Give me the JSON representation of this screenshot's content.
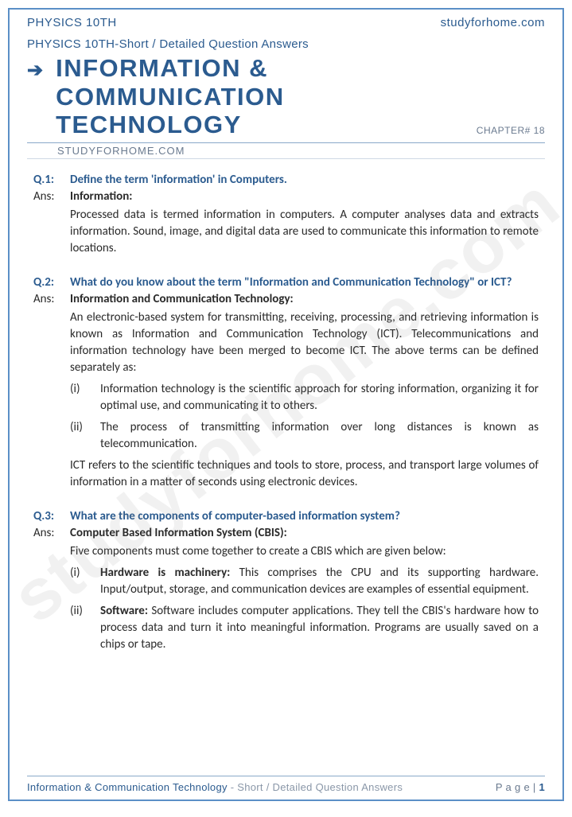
{
  "header": {
    "left": "PHYSICS 10TH",
    "right": "studyforhome.com"
  },
  "breadcrumb": "PHYSICS 10TH-Short / Detailed Question Answers",
  "title": "INFORMATION & COMMUNICATION TECHNOLOGY",
  "chapter": "CHAPTER# 18",
  "source_sub": "STUDYFORHOME.COM",
  "watermark": "studyforhome.com",
  "qa": [
    {
      "qnum": "Q.1:",
      "question": "Define the term 'information' in Computers.",
      "ans_label": "Ans:",
      "ans_head": "Information:",
      "ans_body": "Processed data is termed information in computers. A computer analyses data and extracts information. Sound, image, and digital data are used to communicate this information to remote locations.",
      "subs": [],
      "post": ""
    },
    {
      "qnum": "Q.2:",
      "question": "What do you know about the term \"Information and Communication Technology\" or ICT?",
      "ans_label": "Ans:",
      "ans_head": "Information and Communication Technology:",
      "ans_body": "An electronic-based system for transmitting, receiving, processing, and retrieving information is known as Information and Communication Technology (ICT). Telecommunications and information technology have been merged to become ICT. The above terms can be defined separately as:",
      "subs": [
        {
          "marker": "(i)",
          "bold": "",
          "text": "Information technology is the scientific approach for storing information, organizing it for optimal use, and communicating it to others."
        },
        {
          "marker": "(ii)",
          "bold": "",
          "text": "The process of transmitting information over long distances is known as telecommunication."
        }
      ],
      "post": "ICT refers to the scientific techniques and tools to store, process, and transport large volumes of information in a matter of seconds using electronic devices."
    },
    {
      "qnum": "Q.3:",
      "question": "What are the components of computer-based information system?",
      "ans_label": "Ans:",
      "ans_head": "Computer Based Information System (CBIS):",
      "ans_body": "Five components must come together to create a CBIS which are given below:",
      "subs": [
        {
          "marker": "(i)",
          "bold": "Hardware is machinery:",
          "text": "  This comprises the CPU and its supporting hardware. Input/output, storage, and communication devices are examples of essential equipment."
        },
        {
          "marker": "(ii)",
          "bold": "Software:",
          "text": " Software includes computer applications. They tell the CBIS's hardware how to process data and turn it into meaningful information. Programs are usually saved on a chips or tape."
        }
      ],
      "post": ""
    }
  ],
  "footer": {
    "title_blue": "Information & Communication Technology",
    "title_grey": " - Short / Detailed Question Answers",
    "page_label": "P a g e  | ",
    "page_num": "1"
  },
  "colors": {
    "primary": "#2b5b8f",
    "grey": "#6a7a8f",
    "text": "#2a2a2a",
    "border": "#5b8fc7"
  }
}
